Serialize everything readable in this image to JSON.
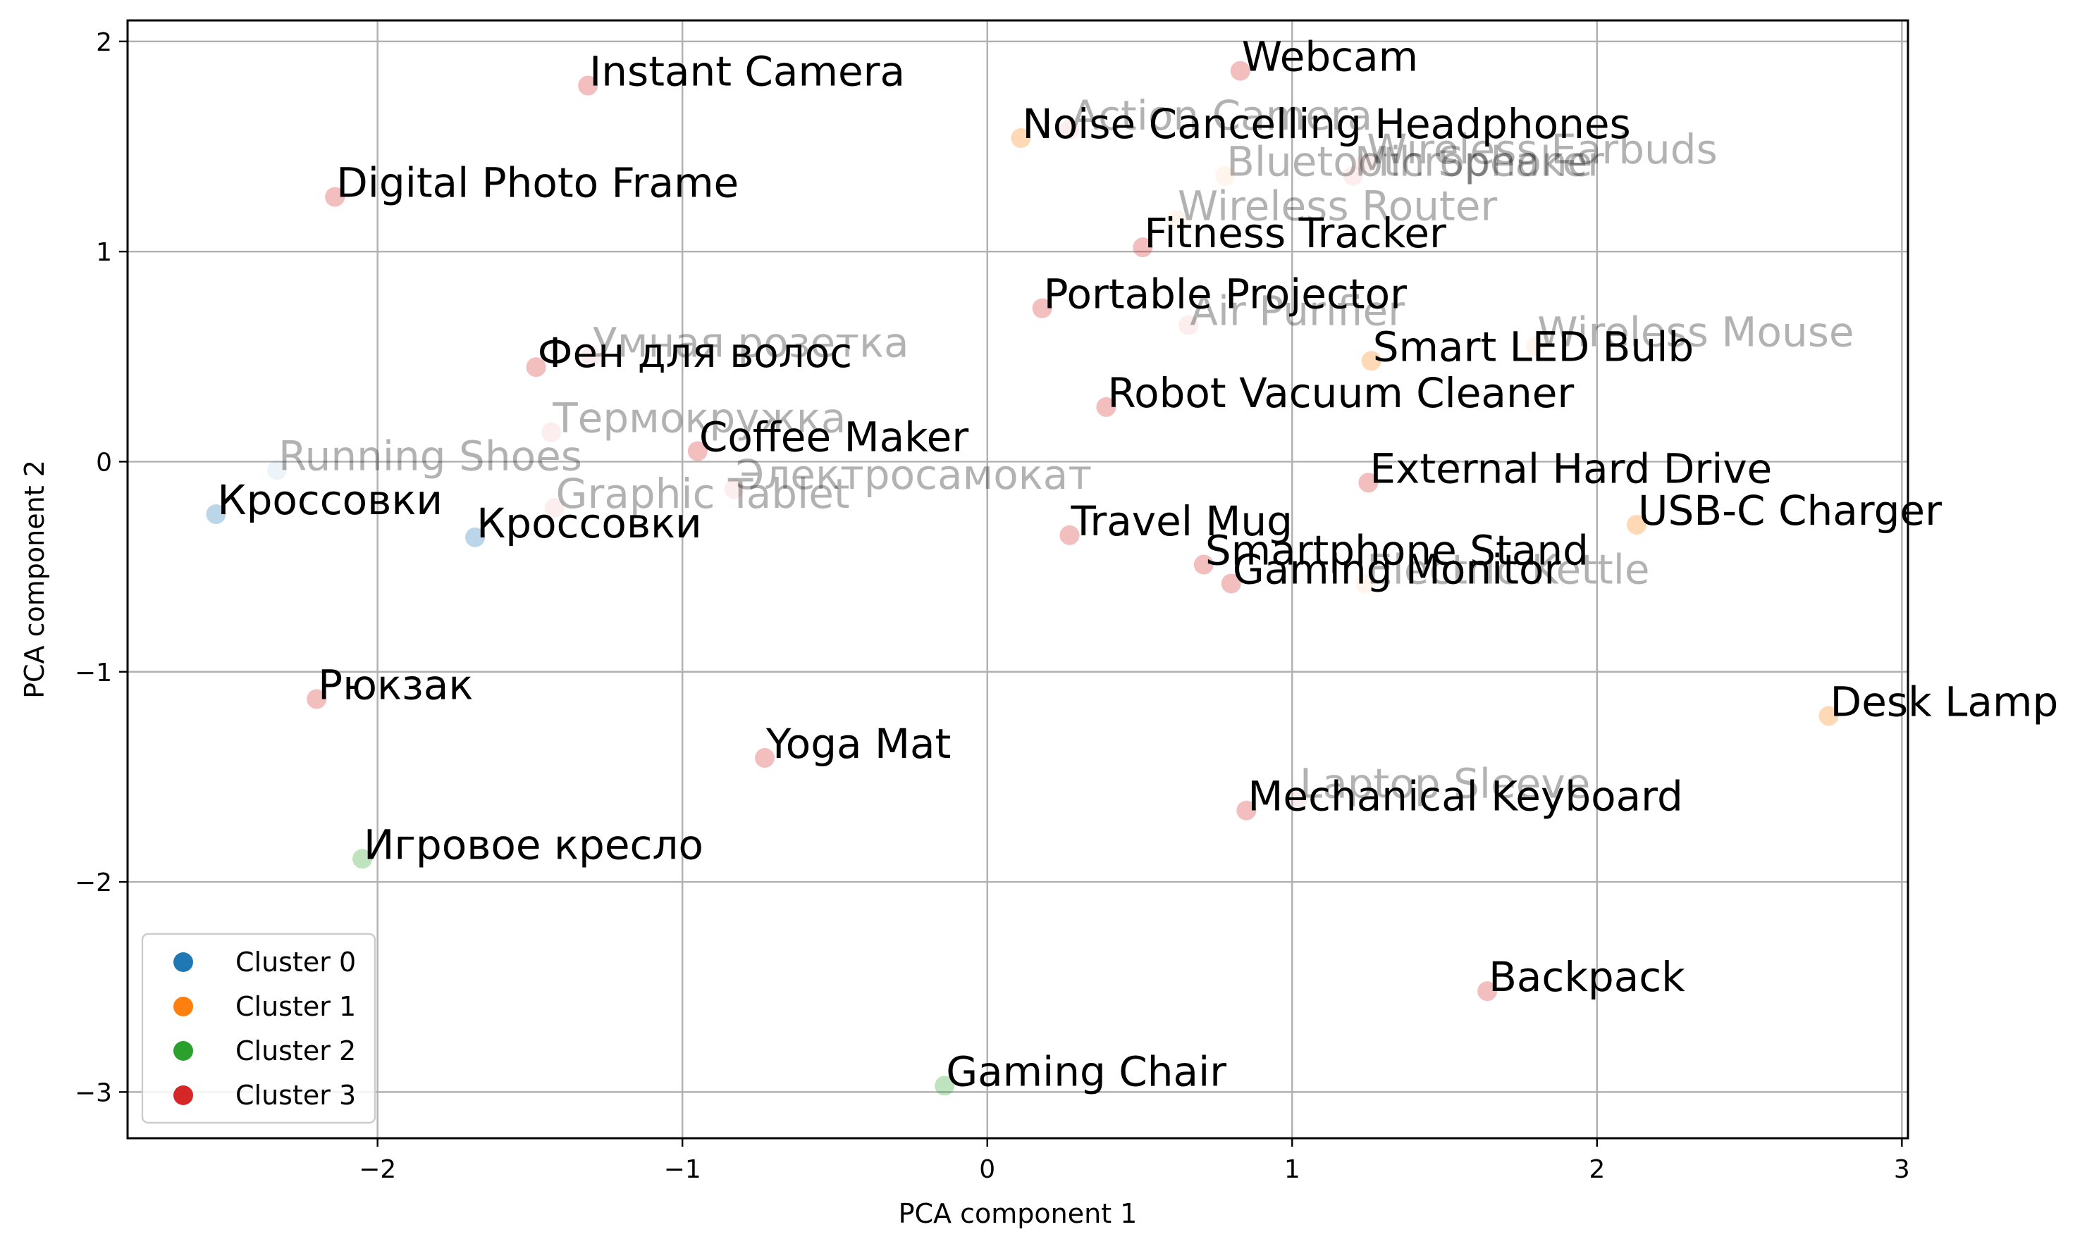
{
  "chart_data": {
    "type": "scatter",
    "title": "",
    "xlabel": "PCA component 1",
    "ylabel": "PCA component 2",
    "xlim": [
      -2.82,
      3.02
    ],
    "ylim": [
      -3.22,
      2.1
    ],
    "xticks": [
      -2,
      -1,
      0,
      1,
      2,
      3
    ],
    "yticks": [
      -3,
      -2,
      -1,
      0,
      1,
      2
    ],
    "xtick_labels": [
      "−2",
      "−1",
      "0",
      "1",
      "2",
      "3"
    ],
    "ytick_labels": [
      "−3",
      "−2",
      "−1",
      "0",
      "1",
      "2"
    ],
    "grid": true,
    "legend_position": "lower-left",
    "series": [
      {
        "name": "Cluster 0",
        "color": "#1f77b4"
      },
      {
        "name": "Cluster 1",
        "color": "#ff7f0e"
      },
      {
        "name": "Cluster 2",
        "color": "#2ca02c"
      },
      {
        "name": "Cluster 3",
        "color": "#d62728"
      }
    ],
    "points": [
      {
        "label": "Instant Camera",
        "x": -1.31,
        "y": 1.79,
        "cluster": 3,
        "alpha": 0.3
      },
      {
        "label": "Digital Photo Frame",
        "x": -2.14,
        "y": 1.26,
        "cluster": 3,
        "alpha": 0.3
      },
      {
        "label": "Webcam",
        "x": 0.83,
        "y": 1.86,
        "cluster": 3,
        "alpha": 0.3
      },
      {
        "label": "Noise Cancelling Headphones",
        "x": 0.11,
        "y": 1.54,
        "cluster": 1,
        "alpha": 0.3
      },
      {
        "label": "Action Camera",
        "x": 0.27,
        "y": 1.58,
        "cluster": 3,
        "alpha": 0.08
      },
      {
        "label": "Bluetooth Speaker",
        "x": 0.78,
        "y": 1.36,
        "cluster": 1,
        "alpha": 0.08
      },
      {
        "label": "Wireless Earbuds",
        "x": 1.24,
        "y": 1.42,
        "cluster": 3,
        "alpha": 0.08
      },
      {
        "label": "Microphone",
        "x": 1.2,
        "y": 1.36,
        "cluster": 3,
        "alpha": 0.08
      },
      {
        "label": "Wireless Router",
        "x": 0.62,
        "y": 1.15,
        "cluster": 1,
        "alpha": 0.08
      },
      {
        "label": "Fitness Tracker",
        "x": 0.51,
        "y": 1.02,
        "cluster": 3,
        "alpha": 0.3
      },
      {
        "label": "Portable Projector",
        "x": 0.18,
        "y": 0.73,
        "cluster": 3,
        "alpha": 0.3
      },
      {
        "label": "Air Purifier",
        "x": 0.66,
        "y": 0.65,
        "cluster": 3,
        "alpha": 0.08
      },
      {
        "label": "Wireless Mouse",
        "x": 1.8,
        "y": 0.55,
        "cluster": 1,
        "alpha": 0.08
      },
      {
        "label": "Smart LED Bulb",
        "x": 1.26,
        "y": 0.48,
        "cluster": 1,
        "alpha": 0.3
      },
      {
        "label": "Умная розетка",
        "x": -1.3,
        "y": 0.5,
        "cluster": 3,
        "alpha": 0.08
      },
      {
        "label": "Фен для волос",
        "x": -1.48,
        "y": 0.45,
        "cluster": 3,
        "alpha": 0.3
      },
      {
        "label": "Robot Vacuum Cleaner",
        "x": 0.39,
        "y": 0.26,
        "cluster": 3,
        "alpha": 0.3
      },
      {
        "label": "Термокружка",
        "x": -1.43,
        "y": 0.14,
        "cluster": 3,
        "alpha": 0.08
      },
      {
        "label": "Coffee Maker",
        "x": -0.95,
        "y": 0.05,
        "cluster": 3,
        "alpha": 0.3
      },
      {
        "label": "Running Shoes",
        "x": -2.33,
        "y": -0.04,
        "cluster": 0,
        "alpha": 0.08
      },
      {
        "label": "Электросамокат",
        "x": -0.83,
        "y": -0.13,
        "cluster": 3,
        "alpha": 0.08
      },
      {
        "label": "External Hard Drive",
        "x": 1.25,
        "y": -0.1,
        "cluster": 3,
        "alpha": 0.3
      },
      {
        "label": "Кроссовки",
        "x": -2.53,
        "y": -0.25,
        "cluster": 0,
        "alpha": 0.3
      },
      {
        "label": "Graphic Tablet",
        "x": -1.42,
        "y": -0.22,
        "cluster": 3,
        "alpha": 0.08
      },
      {
        "label": "Кроссовки",
        "x": -1.68,
        "y": -0.36,
        "cluster": 0,
        "alpha": 0.3
      },
      {
        "label": "USB-C Charger",
        "x": 2.13,
        "y": -0.3,
        "cluster": 1,
        "alpha": 0.3
      },
      {
        "label": "Travel Mug",
        "x": 0.27,
        "y": -0.35,
        "cluster": 3,
        "alpha": 0.3
      },
      {
        "label": "Smartphone Stand",
        "x": 0.71,
        "y": -0.49,
        "cluster": 3,
        "alpha": 0.3
      },
      {
        "label": "Electric Kettle",
        "x": 1.24,
        "y": -0.58,
        "cluster": 1,
        "alpha": 0.08
      },
      {
        "label": "Gaming Monitor",
        "x": 0.8,
        "y": -0.58,
        "cluster": 3,
        "alpha": 0.3
      },
      {
        "label": "Рюкзак",
        "x": -2.2,
        "y": -1.13,
        "cluster": 3,
        "alpha": 0.3
      },
      {
        "label": "Desk Lamp",
        "x": 2.76,
        "y": -1.21,
        "cluster": 1,
        "alpha": 0.3
      },
      {
        "label": "Yoga Mat",
        "x": -0.73,
        "y": -1.41,
        "cluster": 3,
        "alpha": 0.3
      },
      {
        "label": "Mechanical Keyboard",
        "x": 0.85,
        "y": -1.66,
        "cluster": 3,
        "alpha": 0.3
      },
      {
        "label": "Laptop Sleeve",
        "x": 1.02,
        "y": -1.6,
        "cluster": 3,
        "alpha": 0.08
      },
      {
        "label": "Игровое кресло",
        "x": -2.05,
        "y": -1.89,
        "cluster": 2,
        "alpha": 0.3
      },
      {
        "label": "Backpack",
        "x": 1.64,
        "y": -2.52,
        "cluster": 3,
        "alpha": 0.3
      },
      {
        "label": "Gaming Chair",
        "x": -0.14,
        "y": -2.97,
        "cluster": 2,
        "alpha": 0.3
      }
    ]
  }
}
